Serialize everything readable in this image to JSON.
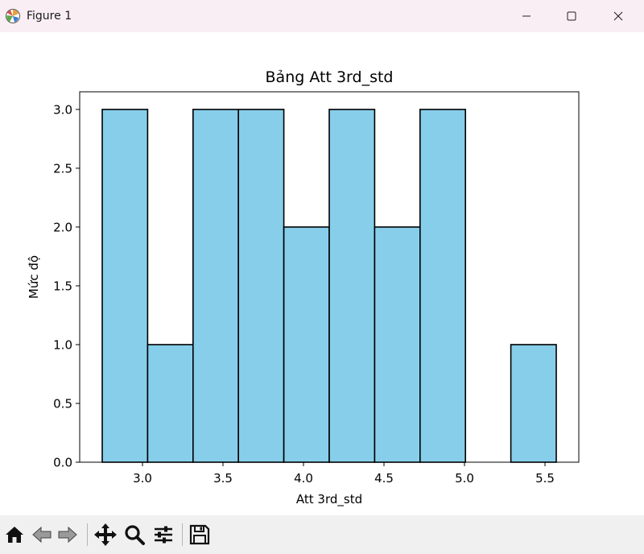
{
  "window": {
    "title": "Figure 1",
    "icons": {
      "app": "matplotlib-icon",
      "minimize": "minimize-icon",
      "maximize": "maximize-icon",
      "close": "close-icon"
    }
  },
  "toolbar": {
    "buttons": [
      "home-icon",
      "back-arrow-icon",
      "forward-arrow-icon",
      "pan-move-icon",
      "zoom-magnifier-icon",
      "configure-subplots-icon",
      "save-icon"
    ]
  },
  "chart_data": {
    "type": "bar",
    "title": "Bảng Att 3rd_std",
    "xlabel": "Att 3rd_std",
    "ylabel": "Mức độ",
    "bin_edges": [
      2.75,
      3.032,
      3.314,
      3.596,
      3.878,
      4.16,
      4.442,
      4.724,
      5.006,
      5.288,
      5.57
    ],
    "values": [
      3,
      1,
      3,
      3,
      2,
      3,
      2,
      3,
      0,
      1
    ],
    "xlim": [
      2.61,
      5.71
    ],
    "ylim": [
      0,
      3.15
    ],
    "xticks": [
      "3.0",
      "3.5",
      "4.0",
      "4.5",
      "5.0",
      "5.5"
    ],
    "yticks": [
      "0.0",
      "0.5",
      "1.0",
      "1.5",
      "2.0",
      "2.5",
      "3.0"
    ],
    "bar_color": "#87ceeb",
    "edge_color": "#000000",
    "grid": false
  }
}
